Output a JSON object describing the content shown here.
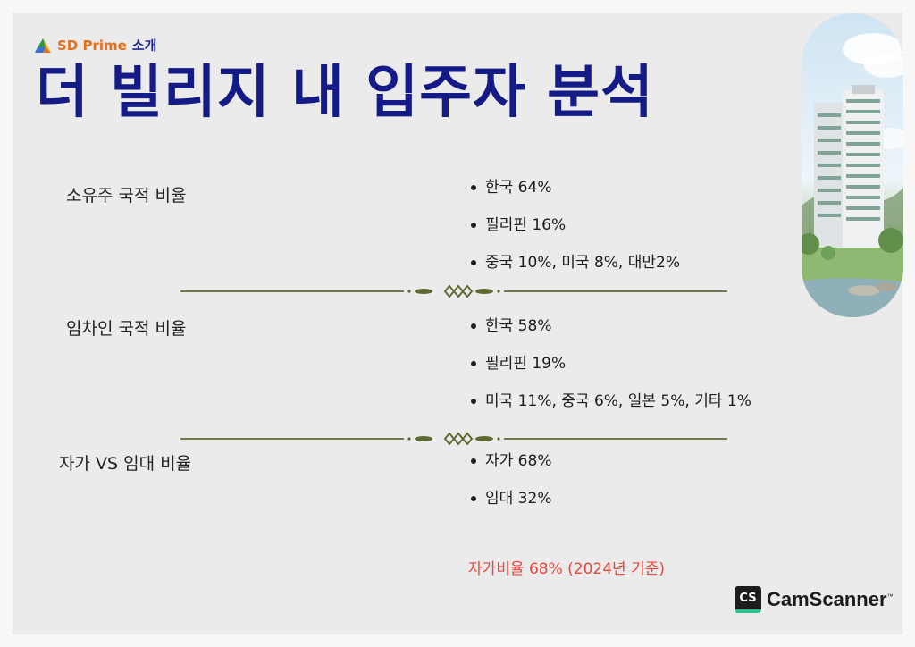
{
  "brand": {
    "name": "SD Prime",
    "suffix": "소개"
  },
  "title": "더 빌리지 내 입주자 분석",
  "sections": [
    {
      "label": "소유주 국적 비율",
      "items": [
        "한국 64%",
        "필리핀 16%",
        "중국 10%, 미국 8%, 대만2%"
      ]
    },
    {
      "label": "임차인 국적 비율",
      "items": [
        "한국 58%",
        "필리핀 19%",
        "미국 11%, 중국 6%, 일본 5%, 기타 1%"
      ]
    },
    {
      "label": "자가 VS 임대 비율",
      "items": [
        "자가 68%",
        "임대 32%"
      ]
    }
  ],
  "note": "자가비율 68% (2024년 기준)",
  "watermark": {
    "badge": "CS",
    "name": "CamScanner",
    "tm": "™"
  },
  "colors": {
    "title": "#141a86",
    "brand_orange": "#e3701f",
    "brand_blue": "#1e2a8c",
    "divider": "#5d6a2f",
    "note": "#e8473c"
  },
  "icons": {
    "brand_logo": "triangle-logo-icon",
    "divider_ornament": "diamond-ornament-icon"
  }
}
